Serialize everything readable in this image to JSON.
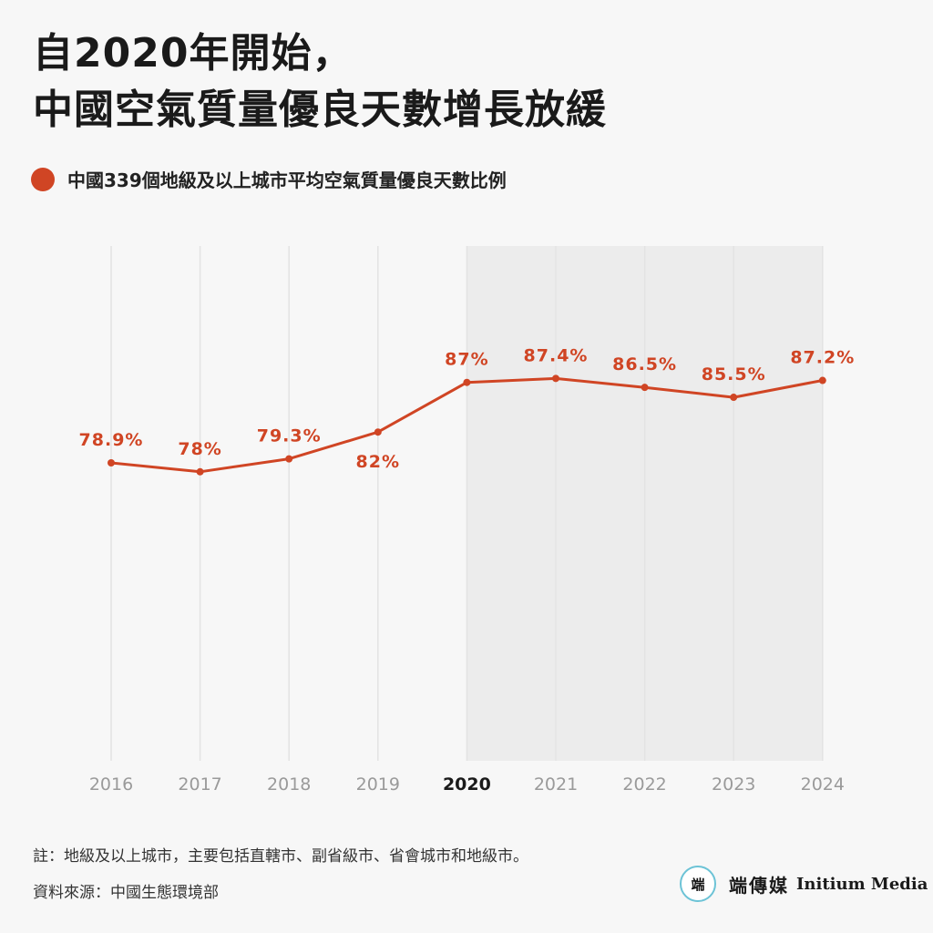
{
  "title": {
    "line1": "自2020年開始，",
    "line2": "中國空氣質量優良天數增長放緩"
  },
  "legend": {
    "label": "中國339個地級及以上城市平均空氣質量優良天數比例",
    "color": "#d04524"
  },
  "chart_data": {
    "type": "line",
    "title": "自2020年開始，中國空氣質量優良天數增長放緩",
    "xlabel": "",
    "ylabel": "",
    "ylim": [
      60,
      95
    ],
    "categories": [
      "2016",
      "2017",
      "2018",
      "2019",
      "2020",
      "2021",
      "2022",
      "2023",
      "2024"
    ],
    "highlight_from": "2020",
    "series": [
      {
        "name": "中國339個地級及以上城市平均空氣質量優良天數比例",
        "values": [
          78.9,
          78,
          79.3,
          82,
          87,
          87.4,
          86.5,
          85.5,
          87.2
        ],
        "labels": [
          "78.9%",
          "78%",
          "79.3%",
          "82%",
          "87%",
          "87.4%",
          "86.5%",
          "85.5%",
          "87.2%"
        ],
        "color": "#d04524"
      }
    ]
  },
  "footer": {
    "note": "註：地級及以上城市，主要包括直轄市、副省級市、省會城市和地級市。",
    "source": "資料來源：中國生態環境部"
  },
  "brand": {
    "logo_text": "端",
    "name_zh": "端傳媒",
    "name_en": "Initium Media"
  }
}
